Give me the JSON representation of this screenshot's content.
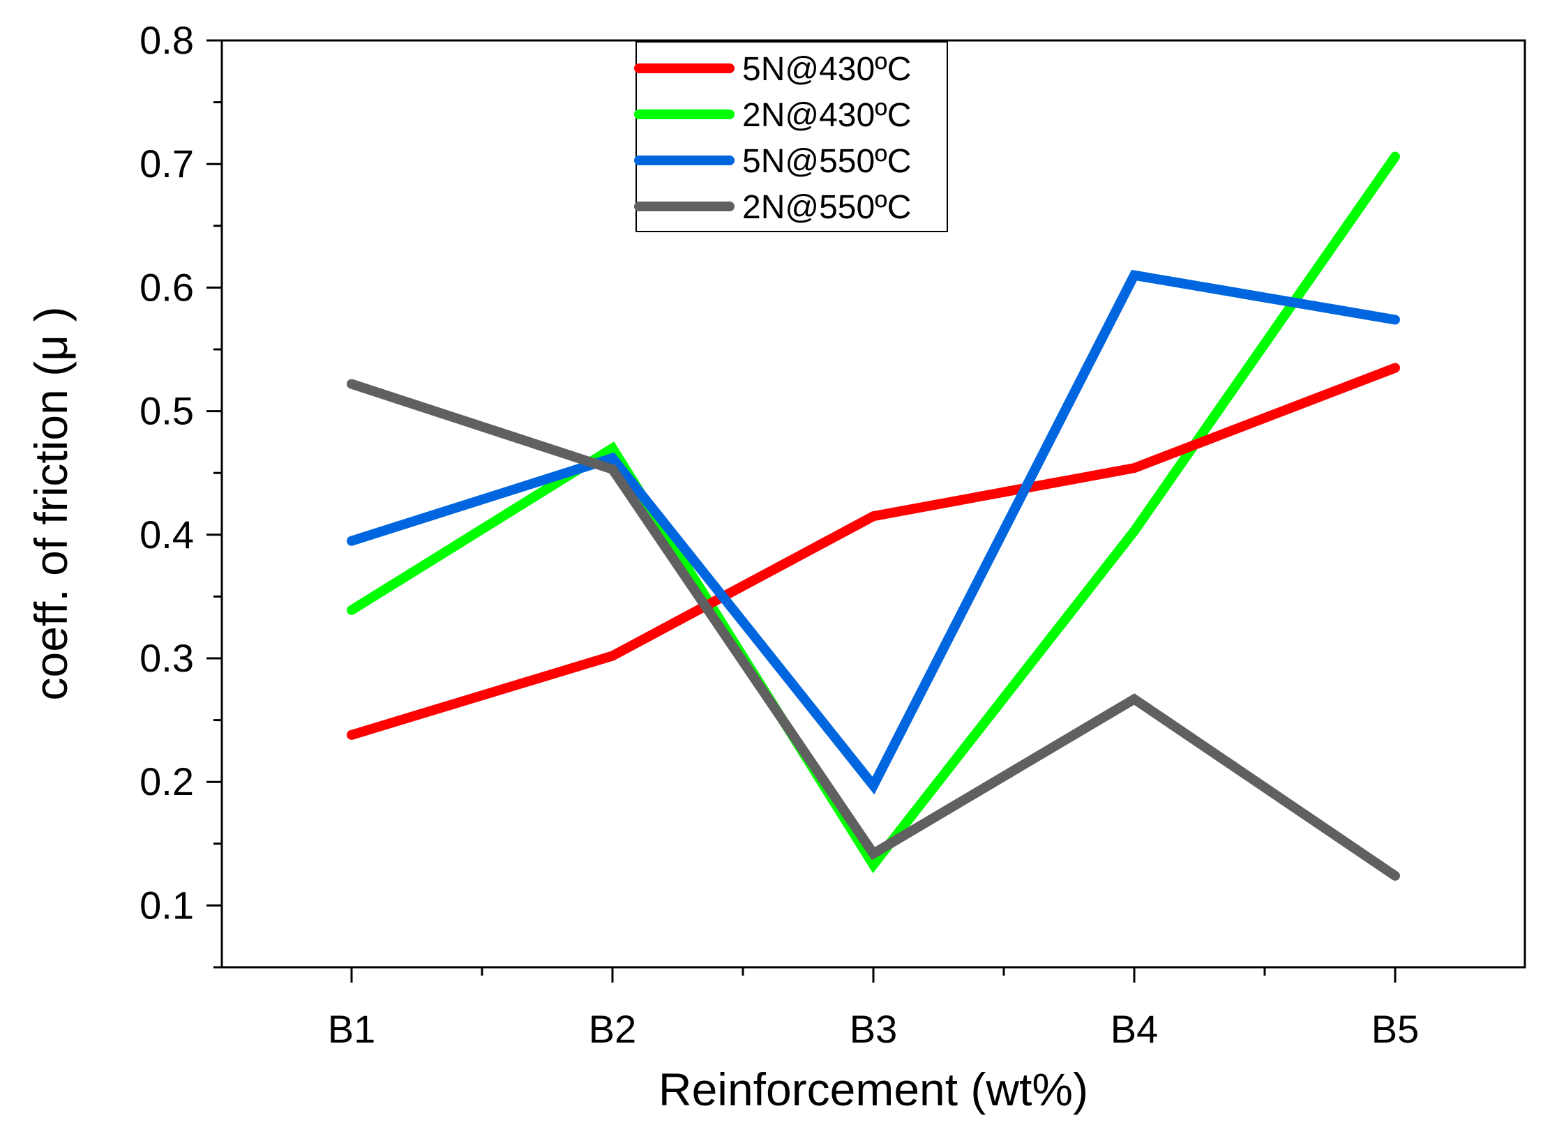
{
  "chart_data": {
    "type": "line",
    "title": "",
    "xlabel": "Reinforcement (wt%)",
    "ylabel": "coeff. of friction (μ )",
    "categories": [
      "B1",
      "B2",
      "B3",
      "B4",
      "B5"
    ],
    "ylim": [
      0.05,
      0.8
    ],
    "yticks": [
      0.1,
      0.2,
      0.3,
      0.4,
      0.5,
      0.6,
      0.7,
      0.8
    ],
    "ytick_labels": [
      "0.1",
      "0.2",
      "0.3",
      "0.4",
      "0.5",
      "0.6",
      "0.7",
      "0.8"
    ],
    "grid": false,
    "legend_position": "top-center",
    "series": [
      {
        "name": "5N@430ºC",
        "color": "#ff0000",
        "values": [
          0.238,
          0.302,
          0.415,
          0.454,
          0.535
        ]
      },
      {
        "name": "2N@430ºC",
        "color": "#00ff00",
        "values": [
          0.339,
          0.47,
          0.133,
          0.403,
          0.706
        ]
      },
      {
        "name": "5N@550ºC",
        "color": "#0066e0",
        "values": [
          0.395,
          0.462,
          0.197,
          0.61,
          0.574
        ]
      },
      {
        "name": "2N@550ºC",
        "color": "#606060",
        "values": [
          0.522,
          0.453,
          0.142,
          0.267,
          0.124
        ]
      }
    ]
  }
}
